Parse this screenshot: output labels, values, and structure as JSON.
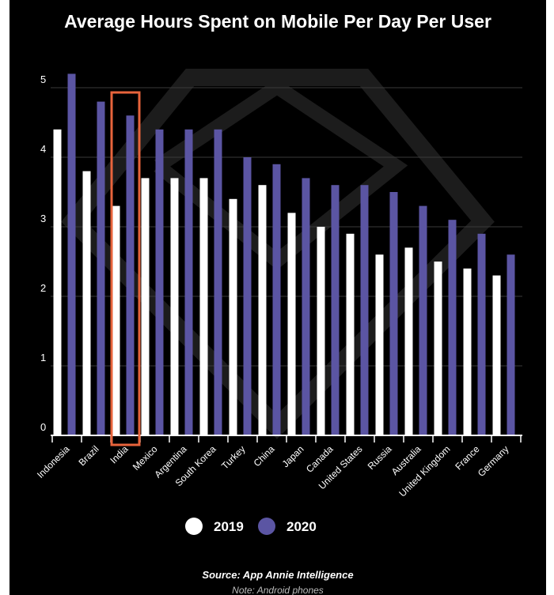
{
  "chart_data": {
    "type": "bar",
    "title": "Average Hours Spent on Mobile Per Day Per User",
    "categories": [
      "Indonesia",
      "Brazil",
      "India",
      "Mexico",
      "Argentina",
      "South Korea",
      "Turkey",
      "China",
      "Japan",
      "Canada",
      "United States",
      "Russia",
      "Australia",
      "United Kingdom",
      "France",
      "Germany"
    ],
    "series": [
      {
        "name": "2019",
        "values": [
          4.4,
          3.8,
          3.3,
          3.7,
          3.7,
          3.7,
          3.4,
          3.6,
          3.2,
          3.0,
          2.9,
          2.6,
          2.7,
          2.5,
          2.4,
          2.3
        ]
      },
      {
        "name": "2020",
        "values": [
          5.2,
          4.8,
          4.6,
          4.4,
          4.4,
          4.4,
          4.0,
          3.9,
          3.7,
          3.6,
          3.6,
          3.5,
          3.3,
          3.1,
          2.9,
          2.6
        ]
      }
    ],
    "y_ticks": [
      "0",
      "1",
      "2",
      "3",
      "4",
      "5"
    ],
    "ylim": [
      0,
      5.3
    ],
    "grid": true,
    "legend_position": "bottom-center",
    "highlighted_category": "India",
    "colors": {
      "background": "#000000",
      "series_2019": "#ffffff",
      "series_2020": "#5b55a3",
      "highlight_box": "#e8643c",
      "grid": "#3a3a3a",
      "watermark": "#1c1c1c"
    }
  },
  "footer": {
    "source": "Source: App Annie Intelligence",
    "note": "Note: Android phones"
  }
}
